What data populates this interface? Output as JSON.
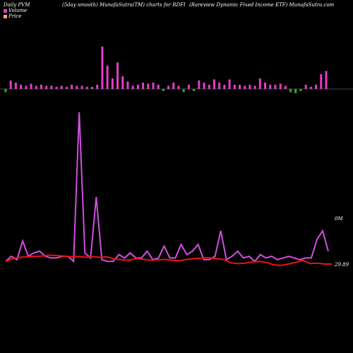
{
  "header": {
    "left": "Daily PVM",
    "middle": "(5day smooth) MunafaSutra(TM) charts for RDFI",
    "right": "(Rareview  Dynamic Fixed Income   ETF) MunafaSutra.com"
  },
  "legend": {
    "volume_label": "Volume",
    "price_label": "Price",
    "volume_color": "#e43cc9",
    "price_color": "#ffa07a"
  },
  "colors": {
    "background": "#000000",
    "volume_up": "#e43cc9",
    "volume_down": "#33aa33",
    "volume_line": "#d050e0",
    "price_line": "#ee1111",
    "baseline": "#888888"
  },
  "chart_data": {
    "type": "bar",
    "annotations": {
      "volume_scale_label": "0M",
      "price_label": "29.89"
    },
    "volume_bars": [
      {
        "v": 3,
        "dir": "down"
      },
      {
        "v": 8,
        "dir": "up"
      },
      {
        "v": 6,
        "dir": "up"
      },
      {
        "v": 4,
        "dir": "up"
      },
      {
        "v": 3,
        "dir": "up"
      },
      {
        "v": 5,
        "dir": "up"
      },
      {
        "v": 3,
        "dir": "up"
      },
      {
        "v": 4,
        "dir": "up"
      },
      {
        "v": 3,
        "dir": "up"
      },
      {
        "v": 3,
        "dir": "up"
      },
      {
        "v": 2,
        "dir": "up"
      },
      {
        "v": 3,
        "dir": "up"
      },
      {
        "v": 2,
        "dir": "up"
      },
      {
        "v": 4,
        "dir": "up"
      },
      {
        "v": 3,
        "dir": "up"
      },
      {
        "v": 3,
        "dir": "up"
      },
      {
        "v": 2,
        "dir": "up"
      },
      {
        "v": 2,
        "dir": "up"
      },
      {
        "v": 4,
        "dir": "up"
      },
      {
        "v": 40,
        "dir": "up"
      },
      {
        "v": 22,
        "dir": "up"
      },
      {
        "v": 10,
        "dir": "up"
      },
      {
        "v": 25,
        "dir": "up"
      },
      {
        "v": 12,
        "dir": "up"
      },
      {
        "v": 7,
        "dir": "up"
      },
      {
        "v": 3,
        "dir": "up"
      },
      {
        "v": 4,
        "dir": "up"
      },
      {
        "v": 6,
        "dir": "up"
      },
      {
        "v": 5,
        "dir": "up"
      },
      {
        "v": 6,
        "dir": "up"
      },
      {
        "v": 4,
        "dir": "up"
      },
      {
        "v": 2,
        "dir": "down"
      },
      {
        "v": 3,
        "dir": "up"
      },
      {
        "v": 6,
        "dir": "up"
      },
      {
        "v": 3,
        "dir": "up"
      },
      {
        "v": 3,
        "dir": "down"
      },
      {
        "v": 4,
        "dir": "up"
      },
      {
        "v": 2,
        "dir": "down"
      },
      {
        "v": 8,
        "dir": "up"
      },
      {
        "v": 6,
        "dir": "up"
      },
      {
        "v": 4,
        "dir": "up"
      },
      {
        "v": 9,
        "dir": "up"
      },
      {
        "v": 6,
        "dir": "up"
      },
      {
        "v": 4,
        "dir": "up"
      },
      {
        "v": 9,
        "dir": "up"
      },
      {
        "v": 4,
        "dir": "up"
      },
      {
        "v": 4,
        "dir": "up"
      },
      {
        "v": 3,
        "dir": "up"
      },
      {
        "v": 4,
        "dir": "up"
      },
      {
        "v": 3,
        "dir": "up"
      },
      {
        "v": 10,
        "dir": "up"
      },
      {
        "v": 6,
        "dir": "up"
      },
      {
        "v": 4,
        "dir": "up"
      },
      {
        "v": 4,
        "dir": "up"
      },
      {
        "v": 5,
        "dir": "up"
      },
      {
        "v": 3,
        "dir": "up"
      },
      {
        "v": 3,
        "dir": "down"
      },
      {
        "v": 4,
        "dir": "down"
      },
      {
        "v": 2,
        "dir": "down"
      },
      {
        "v": 4,
        "dir": "up"
      },
      {
        "v": 2,
        "dir": "up"
      },
      {
        "v": 4,
        "dir": "up"
      },
      {
        "v": 14,
        "dir": "up"
      },
      {
        "v": 17,
        "dir": "up"
      }
    ],
    "volume_smooth": [
      3,
      8,
      6,
      14,
      5,
      7,
      8,
      5,
      6,
      4,
      5,
      5,
      3,
      20,
      4,
      5,
      2,
      6,
      3,
      3,
      6,
      4,
      6,
      4,
      4,
      3,
      6,
      5,
      7,
      4,
      4,
      3,
      2,
      2,
      4,
      5,
      3,
      5,
      3,
      4,
      4,
      10,
      7,
      8,
      5,
      4,
      7,
      8,
      6,
      5,
      5,
      6,
      4,
      4,
      10,
      6,
      8,
      7,
      7,
      10,
      5,
      6,
      14,
      5,
      6,
      3,
      6,
      8,
      12,
      6,
      9,
      5,
      4,
      3
    ],
    "volume_line": [
      2,
      5,
      3,
      14,
      5,
      7,
      8,
      5,
      4,
      4,
      5,
      5,
      2,
      90,
      7,
      4,
      40,
      3,
      2,
      2,
      6,
      4,
      7,
      4,
      4,
      8,
      3,
      4,
      11,
      4,
      4,
      12,
      6,
      8,
      12,
      3,
      3,
      5,
      20,
      3,
      5,
      8,
      4,
      5,
      2,
      6,
      4,
      5,
      3,
      4,
      5,
      4,
      3,
      4,
      4,
      15,
      20,
      8
    ],
    "price": [
      29.95,
      30.02,
      30.05,
      30.06,
      30.07,
      30.08,
      30.1,
      30.09,
      30.08,
      30.06,
      30.07,
      30.05,
      30.06,
      30.05,
      30.06,
      30.01,
      29.99,
      29.98,
      30.02,
      30.0,
      29.98,
      29.99,
      30.0,
      29.98,
      29.97,
      30.0,
      30.02,
      30.03,
      30.04,
      30.02,
      30.0,
      29.92,
      29.9,
      29.91,
      29.94,
      29.95,
      29.93,
      29.87,
      29.86,
      29.89,
      29.93,
      29.98,
      29.9,
      29.91,
      29.89,
      29.89
    ]
  }
}
